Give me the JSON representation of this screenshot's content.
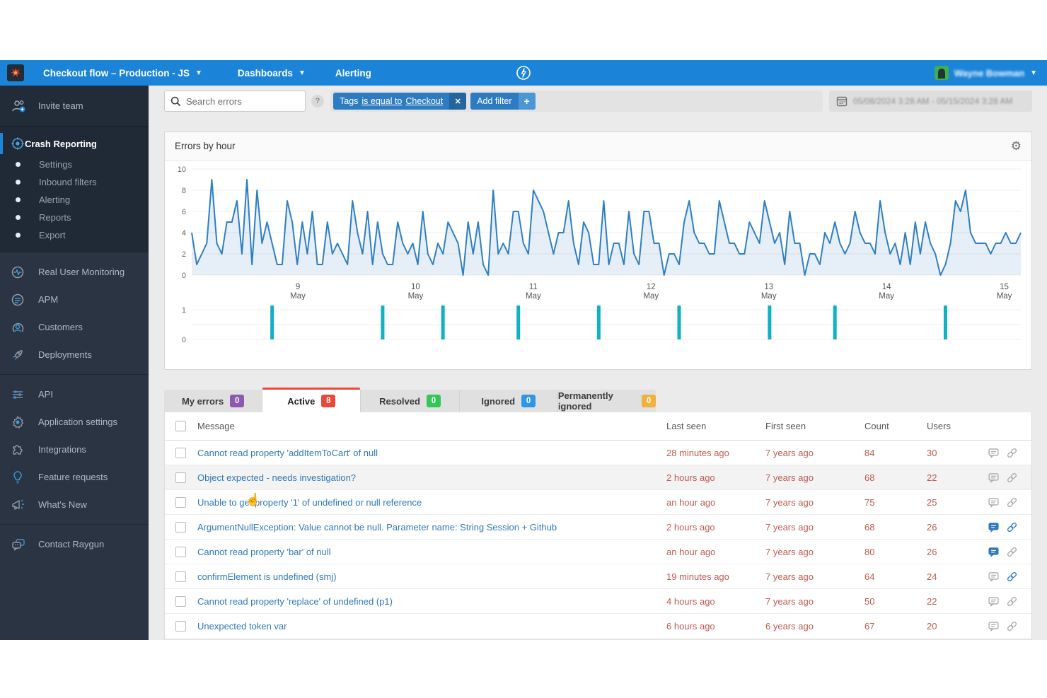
{
  "nav": {
    "app_selector": "Checkout flow – Production - JS",
    "dashboards": "Dashboards",
    "alerting": "Alerting",
    "user_name": "Wayne Bowman"
  },
  "sidebar": {
    "invite_team": "Invite team",
    "crash_reporting": "Crash Reporting",
    "crash_sub": [
      "Settings",
      "Inbound filters",
      "Alerting",
      "Reports",
      "Export"
    ],
    "items_mid": [
      "Real User Monitoring",
      "APM",
      "Customers",
      "Deployments"
    ],
    "items_lower": [
      "API",
      "Application settings",
      "Integrations",
      "Feature requests",
      "What's New"
    ],
    "contact": "Contact Raygun"
  },
  "toolbar": {
    "search_placeholder": "Search errors",
    "help_label": "?",
    "filter_chip": {
      "prefix": "Tags",
      "operator": "is equal to",
      "value": "Checkout",
      "remove_label": "✕"
    },
    "add_filter_label": "Add filter",
    "add_filter_plus": "+",
    "date_range": "05/08/2024 3:28 AM - 05/15/2024 3:28 AM"
  },
  "panel": {
    "title": "Errors by hour"
  },
  "tabs": [
    {
      "label": "My errors",
      "count": "0",
      "badge_color": "#8e57b0",
      "active": false
    },
    {
      "label": "Active",
      "count": "8",
      "badge_color": "#e8493a",
      "active": true
    },
    {
      "label": "Resolved",
      "count": "0",
      "badge_color": "#33c758",
      "active": false
    },
    {
      "label": "Ignored",
      "count": "0",
      "badge_color": "#2e95e8",
      "active": false
    },
    {
      "label": "Permanently ignored",
      "count": "0",
      "badge_color": "#f0b13e",
      "active": false
    }
  ],
  "table": {
    "columns": {
      "message": "Message",
      "last_seen": "Last seen",
      "first_seen": "First seen",
      "count": "Count",
      "users": "Users"
    },
    "rows": [
      {
        "message": "Cannot read property 'addItemToCart' of null",
        "last_seen": "28 minutes ago",
        "first_seen": "7 years ago",
        "count": "84",
        "users": "30",
        "comment_active": false,
        "link_active": false,
        "hovered": false
      },
      {
        "message": "Object expected - needs investigation?",
        "last_seen": "2 hours ago",
        "first_seen": "7 years ago",
        "count": "68",
        "users": "22",
        "comment_active": false,
        "link_active": false,
        "hovered": true
      },
      {
        "message": "Unable to get property '1' of undefined or null reference",
        "last_seen": "an hour ago",
        "first_seen": "7 years ago",
        "count": "75",
        "users": "25",
        "comment_active": false,
        "link_active": false,
        "hovered": false
      },
      {
        "message": "ArgumentNullException: Value cannot be null. Parameter name: String Session + Github",
        "last_seen": "2 hours ago",
        "first_seen": "7 years ago",
        "count": "68",
        "users": "26",
        "comment_active": true,
        "link_active": true,
        "hovered": false
      },
      {
        "message": "Cannot read property 'bar' of null",
        "last_seen": "an hour ago",
        "first_seen": "7 years ago",
        "count": "80",
        "users": "26",
        "comment_active": true,
        "link_active": false,
        "hovered": false
      },
      {
        "message": "confirmElement is undefined (smj)",
        "last_seen": "19 minutes ago",
        "first_seen": "7 years ago",
        "count": "64",
        "users": "24",
        "comment_active": false,
        "link_active": true,
        "hovered": false
      },
      {
        "message": "Cannot read property 'replace' of undefined (p1)",
        "last_seen": "4 hours ago",
        "first_seen": "7 years ago",
        "count": "50",
        "users": "22",
        "comment_active": false,
        "link_active": false,
        "hovered": false
      },
      {
        "message": "Unexpected token var",
        "last_seen": "6 hours ago",
        "first_seen": "6 years ago",
        "count": "67",
        "users": "20",
        "comment_active": false,
        "link_active": false,
        "hovered": false
      }
    ]
  },
  "chart_data": [
    {
      "type": "line",
      "title": "Errors by hour",
      "unit": "errors per hour",
      "ylim": [
        0,
        10
      ],
      "y_ticks": [
        0,
        2,
        4,
        6,
        8,
        10
      ],
      "x_day_labels": [
        "9",
        "10",
        "11",
        "12",
        "13",
        "14",
        "15"
      ],
      "x_day_sub": "May",
      "first_label_fraction": 0.128,
      "day_fraction_step": 0.142,
      "line_color": "#2e7fc2",
      "fill_color": "rgba(46,127,194,0.12)",
      "grid": true,
      "values": [
        4,
        1,
        2,
        3,
        9,
        3,
        2,
        5,
        5,
        7,
        2,
        9,
        1,
        8,
        3,
        5,
        3,
        1,
        1,
        7,
        5,
        1,
        5,
        2,
        6,
        1,
        1,
        5,
        2,
        3,
        2,
        1,
        7,
        4,
        2,
        6,
        1,
        5,
        2,
        1,
        1,
        5,
        3,
        2,
        3,
        1,
        6,
        2,
        1,
        3,
        2,
        5,
        4,
        3,
        0,
        5,
        2,
        5,
        1,
        0,
        8,
        2,
        3,
        2,
        6,
        6,
        3,
        2,
        8,
        7,
        6,
        4,
        2,
        4,
        4,
        7,
        3,
        1,
        5,
        4,
        1,
        1,
        7,
        1,
        3,
        3,
        1,
        6,
        2,
        1,
        6,
        6,
        3,
        3,
        0,
        2,
        2,
        1,
        5,
        7,
        4,
        3,
        3,
        2,
        2,
        7,
        5,
        3,
        3,
        2,
        2,
        5,
        4,
        3,
        7,
        5,
        3,
        4,
        1,
        6,
        3,
        3,
        0,
        2,
        2,
        1,
        4,
        3,
        5,
        3,
        2,
        3,
        6,
        4,
        3,
        3,
        2,
        7,
        4,
        2,
        3,
        1,
        4,
        1,
        5,
        2,
        5,
        3,
        2,
        0,
        1,
        3,
        7,
        6,
        8,
        4,
        3,
        3,
        3,
        2,
        3,
        3,
        4,
        3,
        3,
        4
      ]
    },
    {
      "type": "bar",
      "title": "Deployments",
      "ylim": [
        0,
        1
      ],
      "y_ticks": [
        0,
        1
      ],
      "bar_color": "#12b0c5",
      "positions_hour_index": [
        16,
        38,
        50,
        65,
        81,
        97,
        115,
        128,
        150
      ],
      "total_hours": 166
    }
  ]
}
